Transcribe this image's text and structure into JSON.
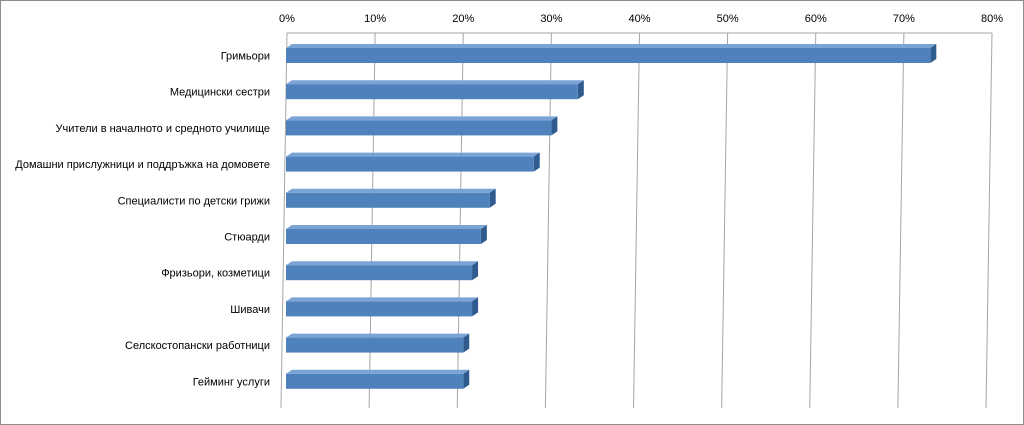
{
  "chart_data": {
    "type": "bar",
    "orientation": "horizontal",
    "style": "3d",
    "title": "",
    "xlabel": "",
    "ylabel": "",
    "xlim": [
      0,
      80
    ],
    "x_ticks": [
      "0%",
      "10%",
      "20%",
      "30%",
      "40%",
      "50%",
      "60%",
      "70%",
      "80%"
    ],
    "x_tick_position": "top",
    "grid": "vertical",
    "legend": "none",
    "categories": [
      "Гримьори",
      "Медицински  сестри",
      "Учители в началното и средното училище",
      "Домашни прислужници и поддръжка на домовете",
      "Специалисти по детски грижи",
      "Стюарди",
      "Фризьори,  козметици",
      "Шивачи",
      "Селскостопански работници",
      "Гейминг услуги"
    ],
    "values": [
      73,
      33,
      30,
      28,
      23,
      22,
      21,
      21,
      20,
      20
    ],
    "colors": {
      "bar_front": "#4f81bd",
      "bar_top": "#7aa3d6",
      "bar_side": "#2f5b8f",
      "grid": "#a6a6a6"
    }
  }
}
